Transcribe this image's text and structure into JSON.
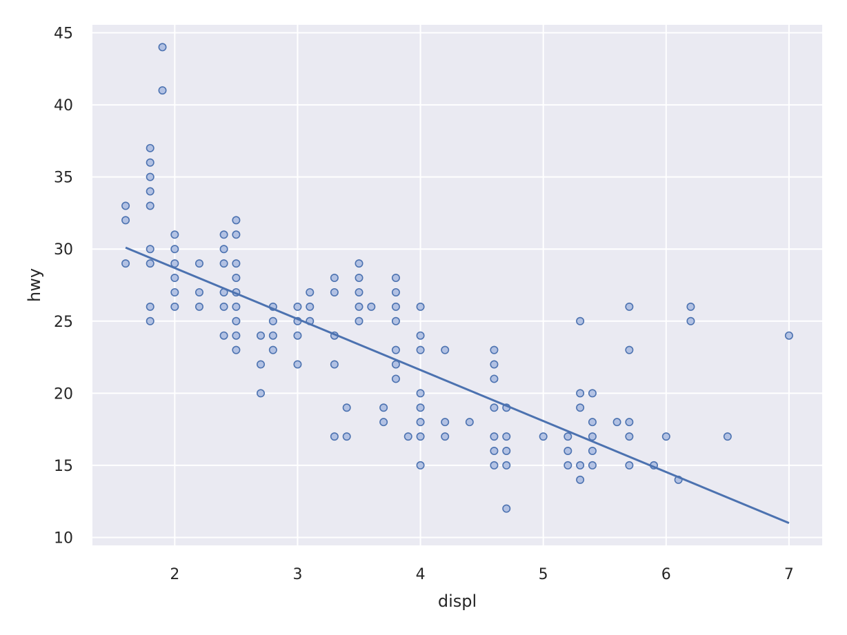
{
  "chart_data": {
    "type": "scatter",
    "xlabel": "displ",
    "ylabel": "hwy",
    "xlim": [
      1.33,
      7.27
    ],
    "ylim": [
      9.45,
      45.55
    ],
    "xticks": [
      2,
      3,
      4,
      5,
      6,
      7
    ],
    "yticks": [
      10,
      15,
      20,
      25,
      30,
      35,
      40,
      45
    ],
    "grid": true,
    "legend": "none",
    "colors": {
      "background": "#eaeaf2",
      "grid": "#ffffff",
      "point_fill": "#a4b7df",
      "point_edge": "#4c72b0",
      "line": "#4c72b0"
    },
    "series": [
      {
        "type": "scatter",
        "points": [
          [
            1.6,
            33
          ],
          [
            1.6,
            32
          ],
          [
            1.6,
            29
          ],
          [
            1.8,
            37
          ],
          [
            1.8,
            36
          ],
          [
            1.8,
            35
          ],
          [
            1.8,
            34
          ],
          [
            1.8,
            33
          ],
          [
            1.8,
            30
          ],
          [
            1.8,
            29
          ],
          [
            1.8,
            26
          ],
          [
            1.8,
            25
          ],
          [
            1.9,
            44
          ],
          [
            1.9,
            41
          ],
          [
            2.0,
            31
          ],
          [
            2.0,
            30
          ],
          [
            2.0,
            29
          ],
          [
            2.0,
            28
          ],
          [
            2.0,
            27
          ],
          [
            2.0,
            26
          ],
          [
            2.2,
            29
          ],
          [
            2.2,
            27
          ],
          [
            2.2,
            26
          ],
          [
            2.4,
            31
          ],
          [
            2.4,
            30
          ],
          [
            2.4,
            29
          ],
          [
            2.4,
            27
          ],
          [
            2.4,
            26
          ],
          [
            2.4,
            24
          ],
          [
            2.5,
            32
          ],
          [
            2.5,
            31
          ],
          [
            2.5,
            29
          ],
          [
            2.5,
            28
          ],
          [
            2.5,
            27
          ],
          [
            2.5,
            26
          ],
          [
            2.5,
            25
          ],
          [
            2.5,
            24
          ],
          [
            2.5,
            23
          ],
          [
            2.7,
            24
          ],
          [
            2.7,
            22
          ],
          [
            2.7,
            20
          ],
          [
            2.8,
            26
          ],
          [
            2.8,
            25
          ],
          [
            2.8,
            24
          ],
          [
            2.8,
            23
          ],
          [
            3.0,
            26
          ],
          [
            3.0,
            25
          ],
          [
            3.0,
            24
          ],
          [
            3.0,
            22
          ],
          [
            3.1,
            27
          ],
          [
            3.1,
            26
          ],
          [
            3.1,
            25
          ],
          [
            3.3,
            28
          ],
          [
            3.3,
            27
          ],
          [
            3.3,
            24
          ],
          [
            3.3,
            22
          ],
          [
            3.3,
            17
          ],
          [
            3.4,
            19
          ],
          [
            3.4,
            17
          ],
          [
            3.5,
            29
          ],
          [
            3.5,
            28
          ],
          [
            3.5,
            27
          ],
          [
            3.5,
            26
          ],
          [
            3.5,
            25
          ],
          [
            3.6,
            26
          ],
          [
            3.7,
            19
          ],
          [
            3.7,
            18
          ],
          [
            3.8,
            28
          ],
          [
            3.8,
            27
          ],
          [
            3.8,
            26
          ],
          [
            3.8,
            25
          ],
          [
            3.8,
            23
          ],
          [
            3.8,
            22
          ],
          [
            3.8,
            21
          ],
          [
            3.9,
            17
          ],
          [
            4.0,
            26
          ],
          [
            4.0,
            24
          ],
          [
            4.0,
            23
          ],
          [
            4.0,
            20
          ],
          [
            4.0,
            19
          ],
          [
            4.0,
            18
          ],
          [
            4.0,
            17
          ],
          [
            4.0,
            15
          ],
          [
            4.2,
            23
          ],
          [
            4.2,
            18
          ],
          [
            4.2,
            17
          ],
          [
            4.4,
            18
          ],
          [
            4.6,
            23
          ],
          [
            4.6,
            22
          ],
          [
            4.6,
            21
          ],
          [
            4.6,
            19
          ],
          [
            4.6,
            17
          ],
          [
            4.6,
            16
          ],
          [
            4.6,
            15
          ],
          [
            4.7,
            19
          ],
          [
            4.7,
            17
          ],
          [
            4.7,
            16
          ],
          [
            4.7,
            15
          ],
          [
            4.7,
            12
          ],
          [
            5.0,
            17
          ],
          [
            5.2,
            17
          ],
          [
            5.2,
            16
          ],
          [
            5.2,
            15
          ],
          [
            5.3,
            25
          ],
          [
            5.3,
            20
          ],
          [
            5.3,
            19
          ],
          [
            5.3,
            15
          ],
          [
            5.3,
            14
          ],
          [
            5.4,
            20
          ],
          [
            5.4,
            18
          ],
          [
            5.4,
            17
          ],
          [
            5.4,
            16
          ],
          [
            5.4,
            15
          ],
          [
            5.6,
            18
          ],
          [
            5.7,
            26
          ],
          [
            5.7,
            23
          ],
          [
            5.7,
            18
          ],
          [
            5.7,
            17
          ],
          [
            5.7,
            15
          ],
          [
            5.9,
            15
          ],
          [
            6.0,
            17
          ],
          [
            6.1,
            14
          ],
          [
            6.2,
            26
          ],
          [
            6.2,
            25
          ],
          [
            6.5,
            17
          ],
          [
            7.0,
            24
          ]
        ]
      },
      {
        "type": "line",
        "points": [
          [
            1.6,
            30.1
          ],
          [
            7.0,
            11.0
          ]
        ]
      }
    ]
  }
}
